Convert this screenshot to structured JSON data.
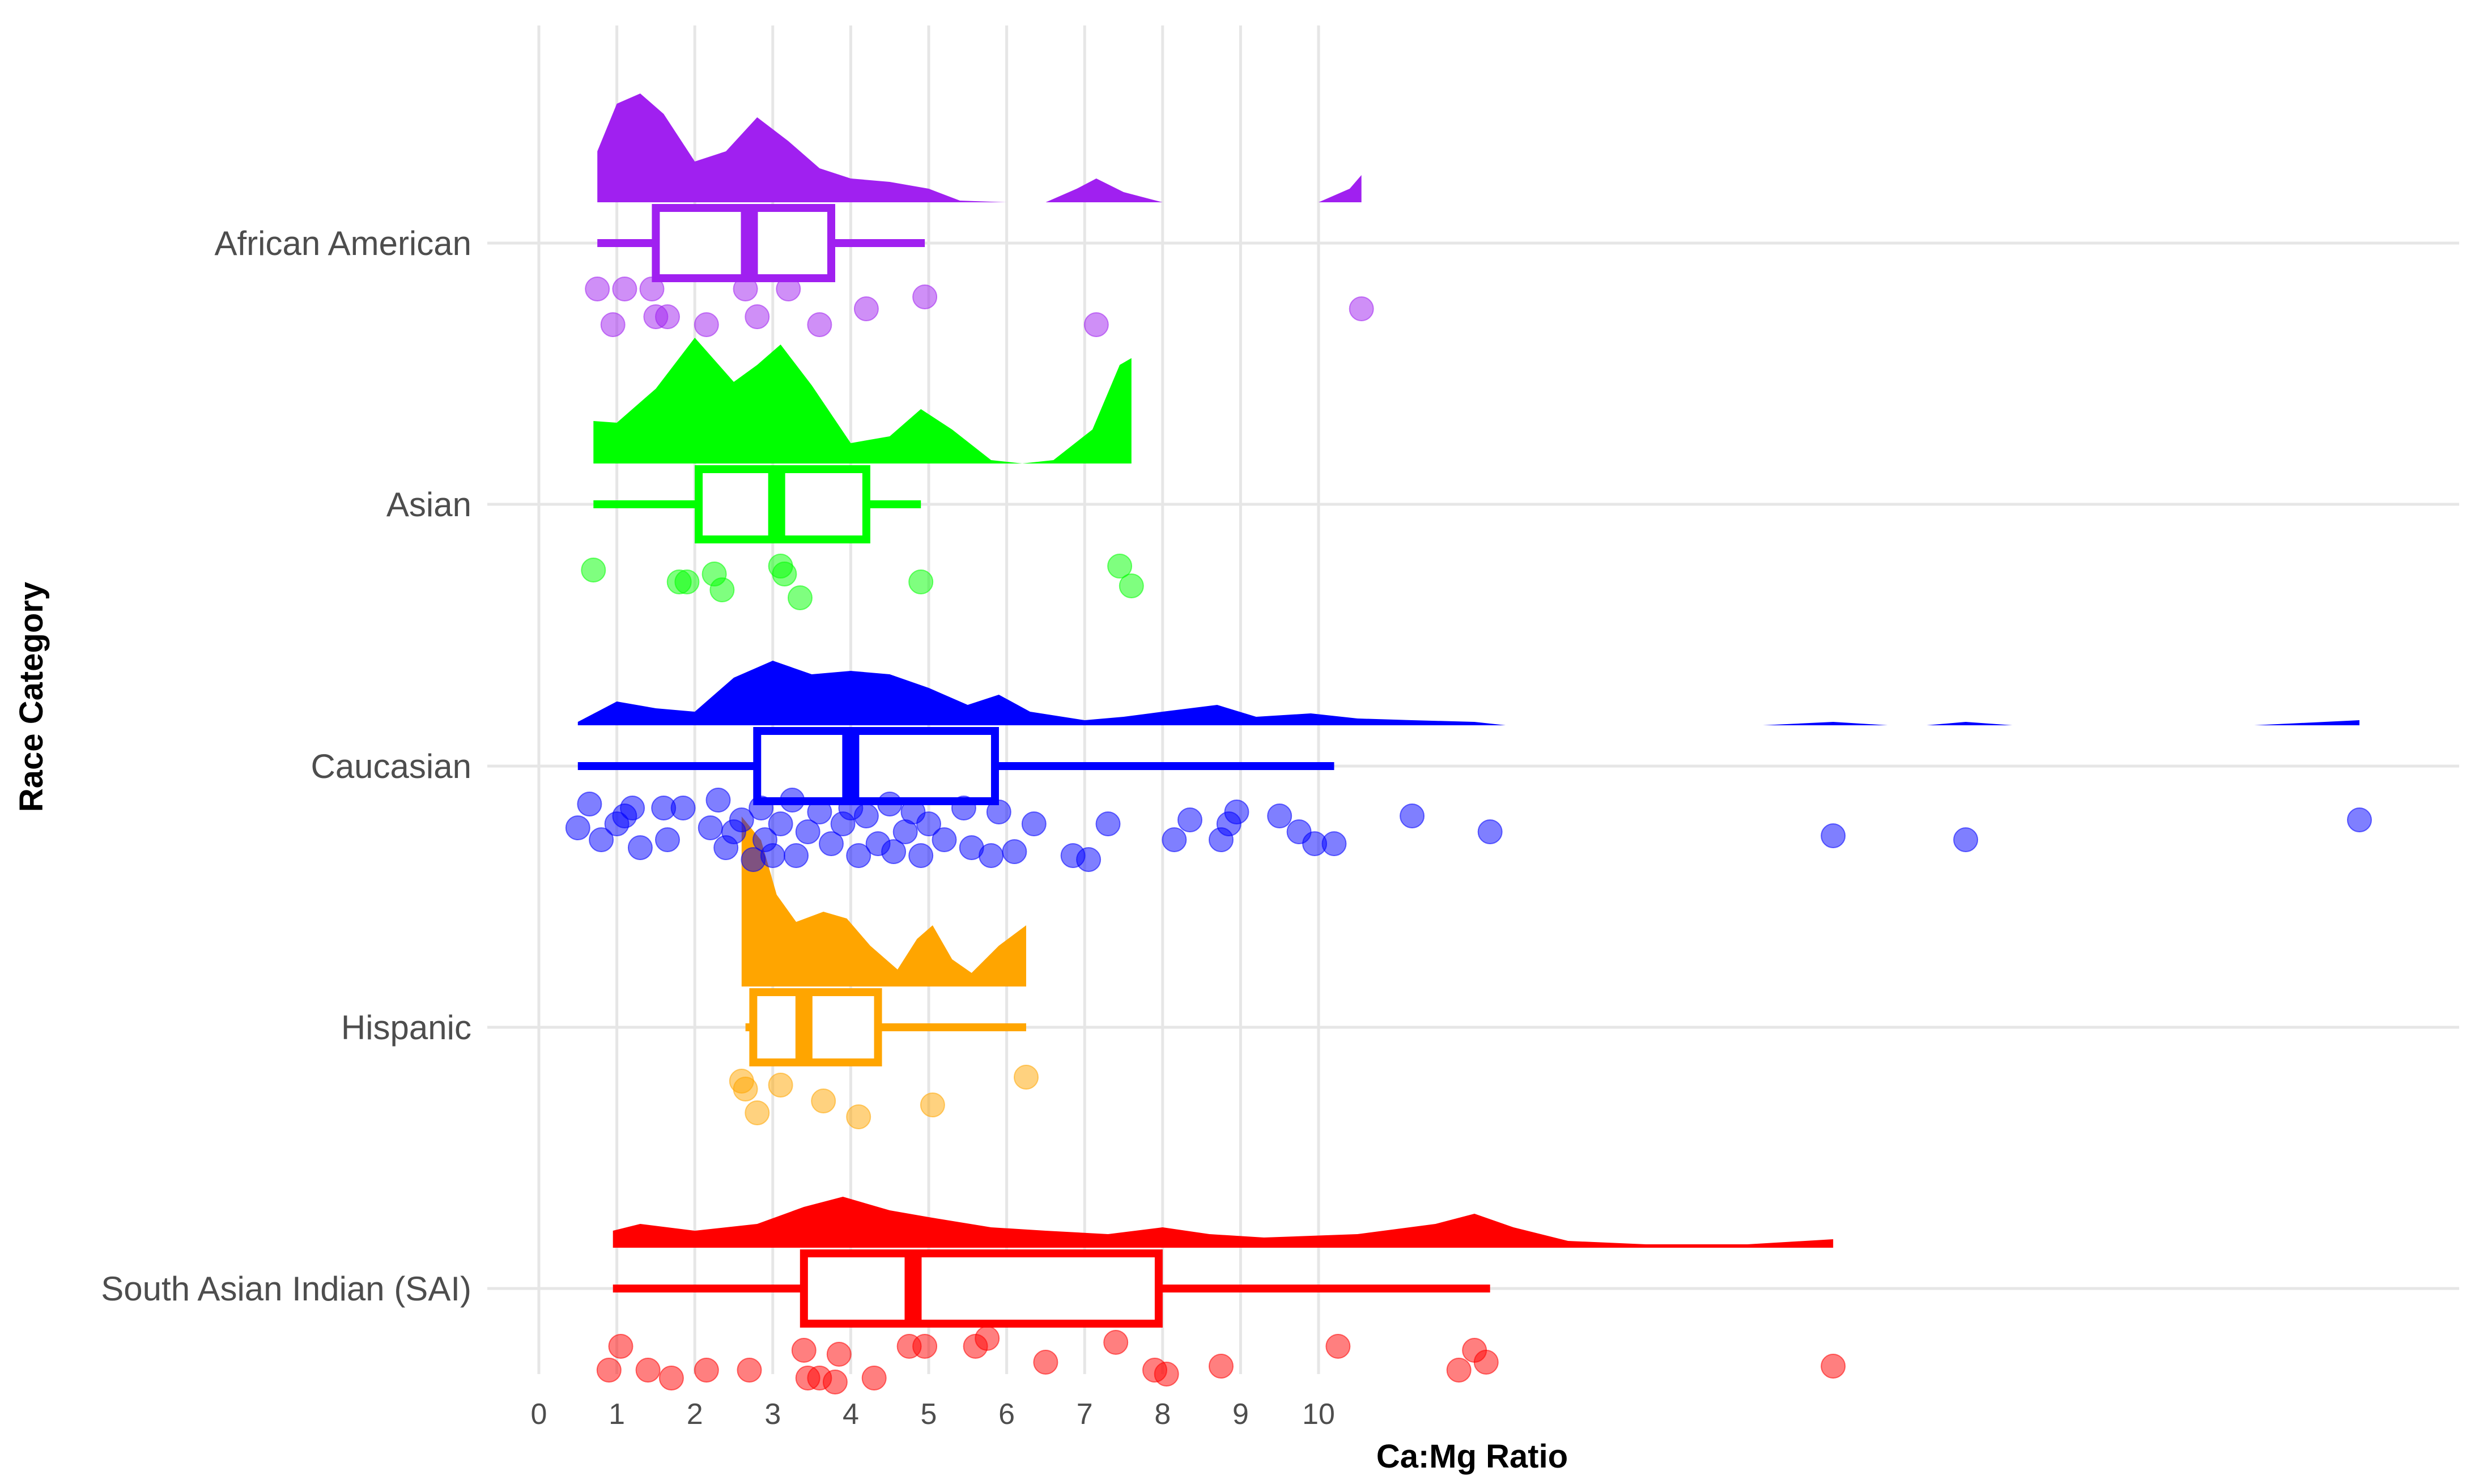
{
  "chart_data": {
    "type": "raincloud",
    "title": "",
    "xlabel": "Ca:Mg Ratio",
    "ylabel": "Race Category",
    "xlim": [
      -0.6,
      24.4
    ],
    "x_ticks": [
      0,
      1,
      2,
      3,
      4,
      5,
      6,
      7,
      8,
      9,
      10
    ],
    "grid": true,
    "legend": "none",
    "series": [
      {
        "name": "African American",
        "color": "#A020F0",
        "box": {
          "whisker_low": 0.75,
          "q1": 1.5,
          "median": 2.7,
          "q3": 3.75,
          "whisker_high": 4.95
        },
        "points": [
          [
            0.75,
            0.13
          ],
          [
            1.1,
            0.13
          ],
          [
            1.45,
            0.13
          ],
          [
            2.65,
            0.13
          ],
          [
            3.2,
            0.13
          ],
          [
            4.95,
            0.15
          ],
          [
            0.95,
            0.22
          ],
          [
            1.5,
            0.2
          ],
          [
            1.65,
            0.2
          ],
          [
            2.15,
            0.22
          ],
          [
            2.8,
            0.2
          ],
          [
            3.6,
            0.22
          ],
          [
            4.2,
            0.18
          ],
          [
            7.15,
            0.22
          ],
          [
            10.55,
            0.18
          ]
        ],
        "density": [
          [
            0.75,
            0.3
          ],
          [
            1.0,
            0.58
          ],
          [
            1.3,
            0.64
          ],
          [
            1.6,
            0.52
          ],
          [
            2.0,
            0.24
          ],
          [
            2.4,
            0.3
          ],
          [
            2.8,
            0.5
          ],
          [
            3.2,
            0.36
          ],
          [
            3.6,
            0.2
          ],
          [
            4.0,
            0.14
          ],
          [
            4.5,
            0.12
          ],
          [
            5.0,
            0.08
          ],
          [
            5.4,
            0.01
          ],
          [
            6.0,
            0.0
          ],
          [
            6.5,
            0.0
          ],
          [
            6.9,
            0.08
          ],
          [
            7.15,
            0.14
          ],
          [
            7.5,
            0.06
          ],
          [
            8.0,
            0.0
          ],
          [
            9.4,
            0.0
          ],
          [
            10.0,
            0.0
          ],
          [
            10.4,
            0.08
          ],
          [
            10.55,
            0.16
          ]
        ]
      },
      {
        "name": "Asian",
        "color": "#00FF00",
        "box": {
          "whisker_low": 0.7,
          "q1": 2.05,
          "median": 3.05,
          "q3": 4.2,
          "whisker_high": 4.9
        },
        "points": [
          [
            0.7,
            0.18
          ],
          [
            1.8,
            0.21
          ],
          [
            1.9,
            0.21
          ],
          [
            2.25,
            0.19
          ],
          [
            2.35,
            0.23
          ],
          [
            3.1,
            0.17
          ],
          [
            3.15,
            0.19
          ],
          [
            3.35,
            0.25
          ],
          [
            4.9,
            0.21
          ],
          [
            7.45,
            0.17
          ],
          [
            7.6,
            0.22
          ]
        ],
        "density": [
          [
            0.7,
            0.25
          ],
          [
            1.0,
            0.24
          ],
          [
            1.5,
            0.44
          ],
          [
            2.0,
            0.74
          ],
          [
            2.5,
            0.48
          ],
          [
            2.8,
            0.58
          ],
          [
            3.1,
            0.7
          ],
          [
            3.5,
            0.46
          ],
          [
            4.0,
            0.12
          ],
          [
            4.5,
            0.16
          ],
          [
            4.9,
            0.32
          ],
          [
            5.3,
            0.2
          ],
          [
            5.8,
            0.02
          ],
          [
            6.2,
            0.0
          ],
          [
            6.6,
            0.02
          ],
          [
            7.1,
            0.2
          ],
          [
            7.45,
            0.58
          ],
          [
            7.6,
            0.62
          ]
        ]
      },
      {
        "name": "Caucasian",
        "color": "#0000FF",
        "box": {
          "whisker_low": 0.5,
          "q1": 2.8,
          "median": 4.0,
          "q3": 5.85,
          "whisker_high": 10.2
        },
        "points": [
          [
            0.5,
            0.17
          ],
          [
            0.65,
            0.11
          ],
          [
            0.8,
            0.2
          ],
          [
            1.0,
            0.16
          ],
          [
            1.1,
            0.14
          ],
          [
            1.2,
            0.12
          ],
          [
            1.3,
            0.22
          ],
          [
            1.6,
            0.12
          ],
          [
            1.65,
            0.2
          ],
          [
            1.85,
            0.12
          ],
          [
            2.2,
            0.17
          ],
          [
            2.3,
            0.1
          ],
          [
            2.4,
            0.22
          ],
          [
            2.5,
            0.18
          ],
          [
            2.6,
            0.15
          ],
          [
            2.75,
            0.25
          ],
          [
            2.85,
            0.12
          ],
          [
            2.9,
            0.2
          ],
          [
            3.0,
            0.24
          ],
          [
            3.1,
            0.16
          ],
          [
            3.25,
            0.1
          ],
          [
            3.3,
            0.24
          ],
          [
            3.45,
            0.18
          ],
          [
            3.6,
            0.13
          ],
          [
            3.75,
            0.21
          ],
          [
            3.9,
            0.16
          ],
          [
            4.0,
            0.12
          ],
          [
            4.1,
            0.24
          ],
          [
            4.2,
            0.14
          ],
          [
            4.35,
            0.21
          ],
          [
            4.5,
            0.11
          ],
          [
            4.55,
            0.23
          ],
          [
            4.7,
            0.18
          ],
          [
            4.8,
            0.13
          ],
          [
            4.9,
            0.24
          ],
          [
            5.0,
            0.16
          ],
          [
            5.2,
            0.2
          ],
          [
            5.45,
            0.12
          ],
          [
            5.55,
            0.22
          ],
          [
            5.8,
            0.24
          ],
          [
            5.9,
            0.13
          ],
          [
            6.1,
            0.23
          ],
          [
            6.35,
            0.16
          ],
          [
            6.85,
            0.24
          ],
          [
            7.05,
            0.25
          ],
          [
            7.3,
            0.16
          ],
          [
            8.15,
            0.2
          ],
          [
            8.35,
            0.15
          ],
          [
            8.75,
            0.2
          ],
          [
            8.85,
            0.16
          ],
          [
            8.95,
            0.13
          ],
          [
            9.5,
            0.14
          ],
          [
            9.75,
            0.18
          ],
          [
            9.95,
            0.21
          ],
          [
            10.2,
            0.21
          ],
          [
            11.2,
            0.14
          ],
          [
            12.2,
            0.18
          ],
          [
            16.6,
            0.19
          ],
          [
            18.3,
            0.2
          ],
          [
            23.35,
            0.15
          ]
        ],
        "density": [
          [
            0.5,
            0.02
          ],
          [
            1.0,
            0.14
          ],
          [
            1.5,
            0.1
          ],
          [
            2.0,
            0.08
          ],
          [
            2.5,
            0.28
          ],
          [
            3.0,
            0.38
          ],
          [
            3.5,
            0.3
          ],
          [
            4.0,
            0.32
          ],
          [
            4.5,
            0.3
          ],
          [
            5.0,
            0.22
          ],
          [
            5.5,
            0.12
          ],
          [
            5.9,
            0.18
          ],
          [
            6.3,
            0.08
          ],
          [
            7.0,
            0.03
          ],
          [
            7.5,
            0.05
          ],
          [
            8.0,
            0.08
          ],
          [
            8.7,
            0.12
          ],
          [
            9.2,
            0.05
          ],
          [
            9.9,
            0.07
          ],
          [
            10.5,
            0.04
          ],
          [
            11.2,
            0.03
          ],
          [
            12.0,
            0.02
          ],
          [
            12.4,
            0.0
          ],
          [
            15.7,
            0.0
          ],
          [
            16.6,
            0.02
          ],
          [
            17.3,
            0.0
          ],
          [
            17.8,
            0.0
          ],
          [
            18.3,
            0.02
          ],
          [
            18.9,
            0.0
          ],
          [
            22.0,
            0.0
          ],
          [
            23.35,
            0.03
          ]
        ]
      },
      {
        "name": "Hispanic",
        "color": "#FFA500",
        "box": {
          "whisker_low": 2.65,
          "q1": 2.75,
          "median": 3.4,
          "q3": 4.35,
          "whisker_high": 6.25
        },
        "points": [
          [
            2.6,
            0.15
          ],
          [
            2.65,
            0.17
          ],
          [
            2.8,
            0.23
          ],
          [
            3.1,
            0.16
          ],
          [
            3.65,
            0.2
          ],
          [
            4.1,
            0.24
          ],
          [
            5.05,
            0.21
          ],
          [
            6.25,
            0.14
          ]
        ],
        "density": [
          [
            2.6,
            1.0
          ],
          [
            2.85,
            0.86
          ],
          [
            3.05,
            0.54
          ],
          [
            3.3,
            0.38
          ],
          [
            3.65,
            0.44
          ],
          [
            3.95,
            0.4
          ],
          [
            4.25,
            0.24
          ],
          [
            4.6,
            0.1
          ],
          [
            4.85,
            0.28
          ],
          [
            5.05,
            0.36
          ],
          [
            5.3,
            0.16
          ],
          [
            5.55,
            0.08
          ],
          [
            5.9,
            0.24
          ],
          [
            6.25,
            0.36
          ]
        ]
      },
      {
        "name": "South Asian Indian (SAI)",
        "color": "#FF0000",
        "box": {
          "whisker_low": 0.95,
          "q1": 3.4,
          "median": 4.8,
          "q3": 7.95,
          "whisker_high": 12.2
        },
        "points": [
          [
            0.9,
            0.22
          ],
          [
            1.05,
            0.16
          ],
          [
            1.4,
            0.22
          ],
          [
            1.7,
            0.24
          ],
          [
            2.15,
            0.22
          ],
          [
            2.7,
            0.22
          ],
          [
            3.4,
            0.17
          ],
          [
            3.45,
            0.24
          ],
          [
            3.6,
            0.24
          ],
          [
            3.8,
            0.25
          ],
          [
            3.85,
            0.18
          ],
          [
            4.3,
            0.24
          ],
          [
            4.75,
            0.16
          ],
          [
            4.95,
            0.16
          ],
          [
            5.6,
            0.16
          ],
          [
            5.75,
            0.14
          ],
          [
            6.5,
            0.2
          ],
          [
            7.4,
            0.15
          ],
          [
            7.9,
            0.22
          ],
          [
            8.05,
            0.23
          ],
          [
            8.75,
            0.21
          ],
          [
            10.25,
            0.16
          ],
          [
            11.8,
            0.22
          ],
          [
            12.0,
            0.17
          ],
          [
            12.15,
            0.2
          ],
          [
            16.6,
            0.21
          ]
        ],
        "density": [
          [
            0.95,
            0.1
          ],
          [
            1.3,
            0.14
          ],
          [
            2.0,
            0.1
          ],
          [
            2.8,
            0.14
          ],
          [
            3.4,
            0.24
          ],
          [
            3.9,
            0.3
          ],
          [
            4.5,
            0.22
          ],
          [
            5.0,
            0.18
          ],
          [
            5.8,
            0.12
          ],
          [
            6.5,
            0.1
          ],
          [
            7.3,
            0.08
          ],
          [
            8.0,
            0.12
          ],
          [
            8.6,
            0.08
          ],
          [
            9.3,
            0.06
          ],
          [
            10.5,
            0.08
          ],
          [
            11.5,
            0.14
          ],
          [
            12.0,
            0.2
          ],
          [
            12.5,
            0.12
          ],
          [
            13.2,
            0.04
          ],
          [
            14.2,
            0.02
          ],
          [
            15.5,
            0.02
          ],
          [
            16.6,
            0.05
          ]
        ]
      }
    ]
  }
}
